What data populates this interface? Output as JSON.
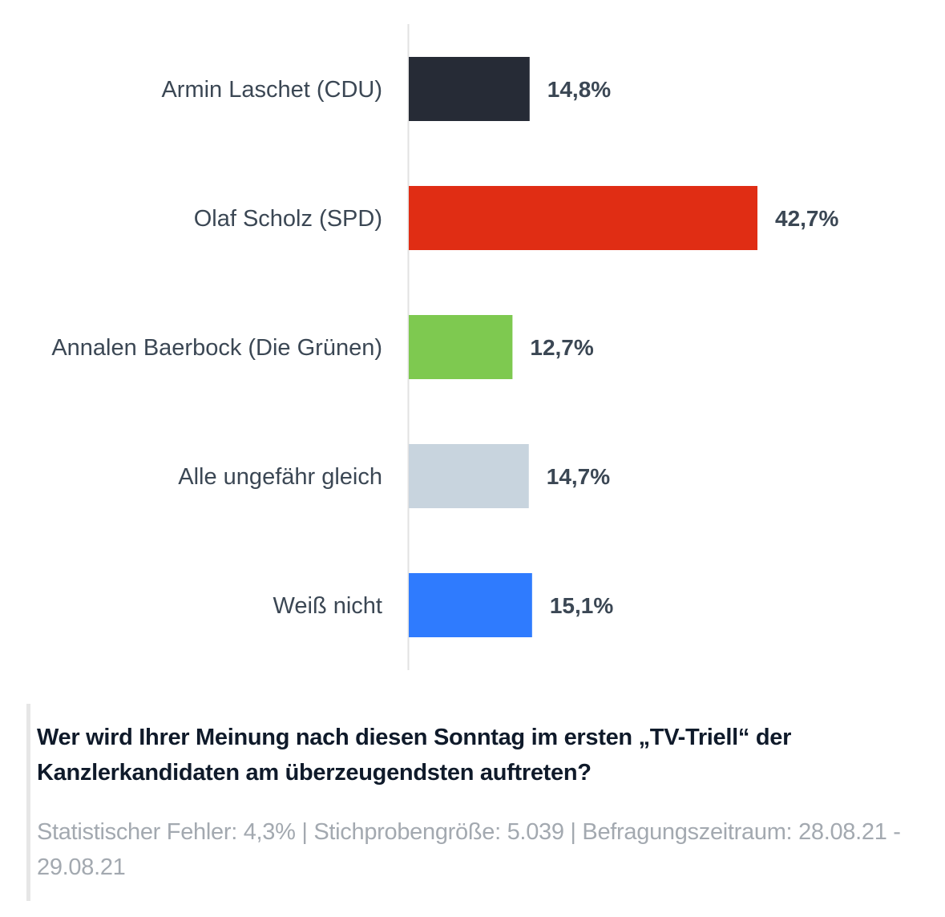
{
  "chart_data": {
    "type": "bar",
    "orientation": "horizontal",
    "categories": [
      "Armin Laschet (CDU)",
      "Olaf Scholz (SPD)",
      "Annalen Baerbock (Die Grünen)",
      "Alle ungefähr gleich",
      "Weiß nicht"
    ],
    "values": [
      14.8,
      42.7,
      12.7,
      14.7,
      15.1
    ],
    "value_labels": [
      "14,8%",
      "42,7%",
      "12,7%",
      "14,7%",
      "15,1%"
    ],
    "colors": [
      "#262b36",
      "#e02d14",
      "#7ec950",
      "#c8d4de",
      "#2f7bfe"
    ],
    "xlim": [
      0,
      50
    ],
    "grid": false
  },
  "question": "Wer wird Ihrer Meinung nach diesen Sonntag im ersten „TV-Triell“ der Kanzlerkandidaten am überzeugendsten auftreten?",
  "meta": "Statistischer Fehler: 4,3% | Stichprobengröße: 5.039 | Befragungszeitraum: 28.08.21 - 29.08.21"
}
